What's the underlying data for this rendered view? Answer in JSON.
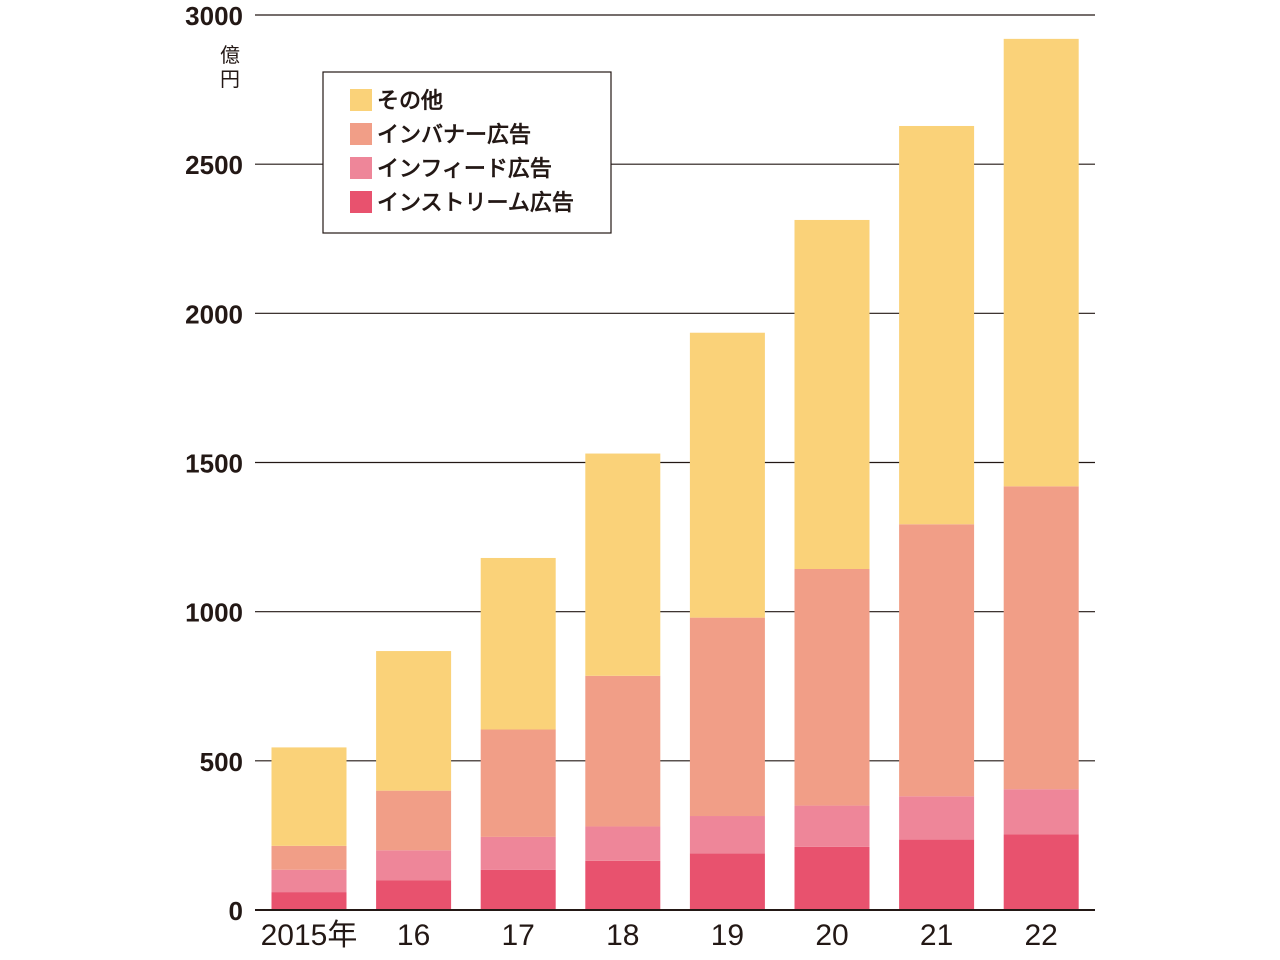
{
  "chart_data": {
    "type": "bar",
    "stacked": true,
    "categories": [
      "2015年",
      "16",
      "17",
      "18",
      "19",
      "20",
      "21",
      "22"
    ],
    "series": [
      {
        "name": "インストリーム広告",
        "color": "#E8526E",
        "values": [
          60,
          100,
          135,
          165,
          190,
          212,
          236,
          253
        ]
      },
      {
        "name": "インフィード広告",
        "color": "#EE8699",
        "values": [
          75,
          100,
          110,
          115,
          125,
          138,
          145,
          152
        ]
      },
      {
        "name": "インバナー広告",
        "color": "#F19E87",
        "values": [
          80,
          200,
          360,
          505,
          665,
          793,
          912,
          1015
        ]
      },
      {
        "name": "その他",
        "color": "#FAD279",
        "values": [
          330,
          468,
          575,
          745,
          955,
          1170,
          1335,
          1500
        ]
      }
    ],
    "legend_order": [
      "その他",
      "インバナー広告",
      "インフィード広告",
      "インストリーム広告"
    ],
    "legend_position": "top-left",
    "y_unit": "億円",
    "ylim": [
      0,
      3000
    ],
    "yticks": [
      0,
      500,
      1000,
      1500,
      2000,
      2500,
      3000
    ],
    "grid": true,
    "title": "",
    "xlabel": "",
    "ylabel": ""
  }
}
